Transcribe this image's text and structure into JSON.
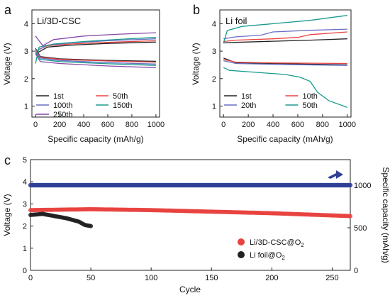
{
  "panels": {
    "a": {
      "letter": "a",
      "title": "Li/3D-CSC"
    },
    "b": {
      "letter": "b",
      "title": "Li foil"
    },
    "c": {
      "letter": "c"
    }
  },
  "colors": {
    "black": "#222222",
    "red": "#e8433f",
    "blue": "#6a6fc4",
    "teal": "#1a9a8e",
    "purple": "#8a4aa8",
    "navy": "#2f3f95"
  },
  "chart_data": [
    {
      "id": "a",
      "type": "line",
      "title": "Li/3D-CSC",
      "xlabel": "Specific capacity (mAh/g)",
      "ylabel": "Voltage (V)",
      "xlim": [
        -30,
        1030
      ],
      "ylim": [
        0.6,
        4.5
      ],
      "xticks": [
        0,
        200,
        400,
        600,
        800,
        1000
      ],
      "yticks": [
        1,
        2,
        3,
        4
      ],
      "legend": "bottom-left",
      "series": [
        {
          "name": "1st",
          "color": "#222222",
          "charge": [
            [
              0,
              2.9
            ],
            [
              100,
              3.15
            ],
            [
              300,
              3.22
            ],
            [
              600,
              3.28
            ],
            [
              1000,
              3.33
            ]
          ],
          "discharge": [
            [
              0,
              3.1
            ],
            [
              40,
              2.8
            ],
            [
              200,
              2.72
            ],
            [
              600,
              2.66
            ],
            [
              1000,
              2.63
            ]
          ]
        },
        {
          "name": "50th",
          "color": "#e8433f",
          "charge": [
            [
              0,
              3.0
            ],
            [
              100,
              3.2
            ],
            [
              300,
              3.26
            ],
            [
              600,
              3.32
            ],
            [
              1000,
              3.38
            ]
          ],
          "discharge": [
            [
              0,
              3.05
            ],
            [
              40,
              2.78
            ],
            [
              200,
              2.7
            ],
            [
              600,
              2.64
            ],
            [
              1000,
              2.6
            ]
          ]
        },
        {
          "name": "100th",
          "color": "#6a6fc4",
          "charge": [
            [
              0,
              3.0
            ],
            [
              100,
              3.22
            ],
            [
              300,
              3.3
            ],
            [
              600,
              3.38
            ],
            [
              1000,
              3.45
            ]
          ],
          "discharge": [
            [
              0,
              3.0
            ],
            [
              40,
              2.75
            ],
            [
              200,
              2.66
            ],
            [
              600,
              2.58
            ],
            [
              1000,
              2.53
            ]
          ]
        },
        {
          "name": "150th",
          "color": "#1a9a8e",
          "charge": [
            [
              0,
              2.55
            ],
            [
              30,
              3.15
            ],
            [
              150,
              3.26
            ],
            [
              400,
              3.35
            ],
            [
              700,
              3.43
            ],
            [
              1000,
              3.5
            ]
          ],
          "discharge": [
            [
              0,
              2.95
            ],
            [
              40,
              2.7
            ],
            [
              200,
              2.62
            ],
            [
              600,
              2.54
            ],
            [
              1000,
              2.48
            ]
          ]
        },
        {
          "name": "250th",
          "color": "#8a4aa8",
          "charge": [
            [
              0,
              3.55
            ],
            [
              60,
              3.2
            ],
            [
              150,
              3.42
            ],
            [
              400,
              3.55
            ],
            [
              700,
              3.62
            ],
            [
              1000,
              3.67
            ]
          ],
          "discharge": [
            [
              0,
              2.9
            ],
            [
              40,
              2.62
            ],
            [
              200,
              2.55
            ],
            [
              600,
              2.46
            ],
            [
              1000,
              2.4
            ]
          ]
        }
      ]
    },
    {
      "id": "b",
      "type": "line",
      "title": "Li foil",
      "xlabel": "Specific capacity (mAh/g)",
      "ylabel": "Voltage (V)",
      "xlim": [
        -30,
        1030
      ],
      "ylim": [
        0.6,
        4.5
      ],
      "xticks": [
        0,
        200,
        400,
        600,
        800,
        1000
      ],
      "yticks": [
        1,
        2,
        3,
        4
      ],
      "legend": "bottom-left",
      "series": [
        {
          "name": "1st",
          "color": "#222222",
          "charge": [
            [
              0,
              3.3
            ],
            [
              100,
              3.32
            ],
            [
              400,
              3.36
            ],
            [
              700,
              3.4
            ],
            [
              1000,
              3.45
            ]
          ],
          "discharge": [
            [
              0,
              2.75
            ],
            [
              100,
              2.58
            ],
            [
              400,
              2.55
            ],
            [
              1000,
              2.5
            ]
          ]
        },
        {
          "name": "10th",
          "color": "#e8433f",
          "charge": [
            [
              0,
              3.35
            ],
            [
              100,
              3.4
            ],
            [
              400,
              3.45
            ],
            [
              600,
              3.5
            ],
            [
              700,
              3.6
            ],
            [
              1000,
              3.7
            ]
          ],
          "discharge": [
            [
              0,
              2.7
            ],
            [
              100,
              2.6
            ],
            [
              400,
              2.57
            ],
            [
              1000,
              2.55
            ]
          ]
        },
        {
          "name": "20th",
          "color": "#6a6fc4",
          "charge": [
            [
              0,
              3.45
            ],
            [
              100,
              3.52
            ],
            [
              300,
              3.58
            ],
            [
              400,
              3.7
            ],
            [
              700,
              3.76
            ],
            [
              1000,
              3.8
            ]
          ],
          "discharge": [
            [
              0,
              2.65
            ],
            [
              100,
              2.55
            ],
            [
              400,
              2.52
            ],
            [
              1000,
              2.48
            ]
          ]
        },
        {
          "name": "50th",
          "color": "#1a9a8e",
          "charge": [
            [
              0,
              3.3
            ],
            [
              30,
              3.75
            ],
            [
              150,
              3.9
            ],
            [
              400,
              4.0
            ],
            [
              700,
              4.12
            ],
            [
              1000,
              4.3
            ]
          ],
          "discharge": [
            [
              0,
              2.4
            ],
            [
              50,
              2.3
            ],
            [
              200,
              2.25
            ],
            [
              500,
              2.15
            ],
            [
              620,
              2.05
            ],
            [
              700,
              1.9
            ],
            [
              760,
              1.5
            ],
            [
              850,
              1.2
            ],
            [
              1000,
              0.95
            ]
          ]
        }
      ]
    },
    {
      "id": "c",
      "type": "scatter",
      "xlabel": "Cycle",
      "ylabel": "Voltage (V)",
      "y2label": "Specific capacity (mAh/g)",
      "xlim": [
        0,
        265
      ],
      "ylim": [
        0,
        5
      ],
      "y2lim": [
        0,
        1300
      ],
      "xticks": [
        0,
        50,
        100,
        150,
        200,
        250
      ],
      "yticks": [
        0,
        1,
        2,
        3,
        4,
        5
      ],
      "y2ticks": [
        0,
        500,
        1000
      ],
      "legend": "right",
      "series": [
        {
          "name": "Li/3D-CSC@O",
          "name_sub": "2",
          "color": "#e8433f",
          "axis": "left",
          "x": [
            0,
            50,
            100,
            150,
            200,
            265
          ],
          "y": [
            2.72,
            2.76,
            2.72,
            2.65,
            2.58,
            2.45
          ]
        },
        {
          "name": "Li foil@O",
          "name_sub": "2",
          "color": "#222222",
          "axis": "left",
          "x": [
            0,
            10,
            20,
            30,
            40,
            45,
            50
          ],
          "y": [
            2.5,
            2.55,
            2.45,
            2.35,
            2.2,
            2.05,
            2.0
          ]
        },
        {
          "name": "capacity",
          "color": "#2f3f95",
          "axis": "right",
          "x": [
            0,
            265
          ],
          "y": [
            1000,
            1000
          ]
        }
      ]
    }
  ]
}
